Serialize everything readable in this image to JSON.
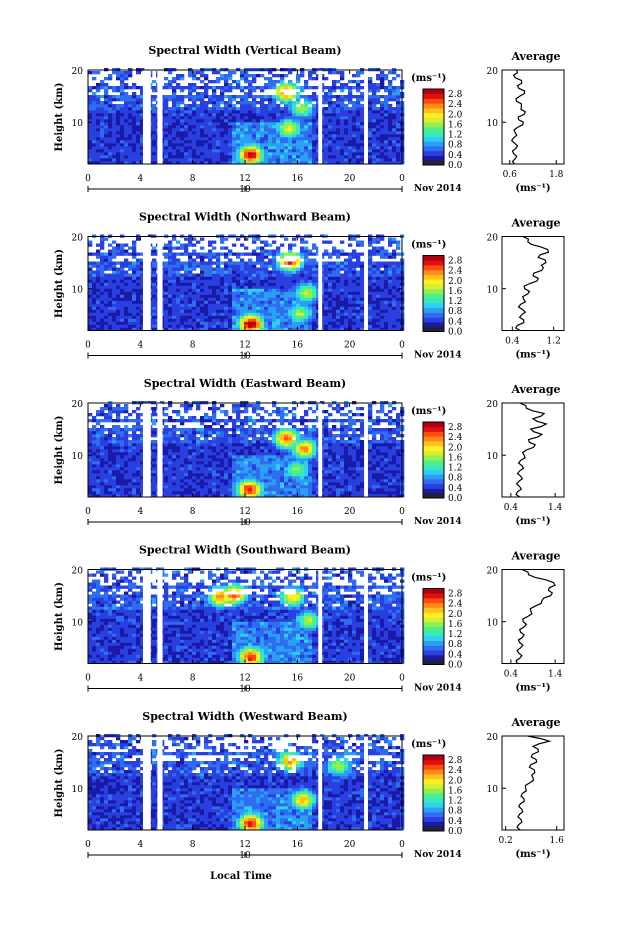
{
  "figure": {
    "xlabel_bottom": "Local Time",
    "date_label": "Nov 2014",
    "day_marker": "10",
    "ylabel": "Height (km)",
    "unit_label": "(ms⁻¹)",
    "avg_title": "Average",
    "colormap": [
      "#000040",
      "#1a1aa8",
      "#2a3fe0",
      "#2f6cf0",
      "#2aa0f5",
      "#30d0f0",
      "#38e8c0",
      "#4cf08a",
      "#90f050",
      "#d8ee30",
      "#fff020",
      "#ffc020",
      "#ff8a18",
      "#ff4a10",
      "#e01010",
      "#b00010"
    ],
    "dark_bottom_color": "#202040"
  },
  "chart_data": [
    {
      "type": "heatmap",
      "title": "Spectral Width (Vertical Beam)",
      "x_ticks": [
        "0",
        "4",
        "8",
        "12",
        "16",
        "20",
        "0"
      ],
      "y_ticks": [
        "20",
        "10"
      ],
      "xlim": [
        0,
        24
      ],
      "ylim": [
        2,
        20
      ],
      "colorbar_ticks": [
        "2.8",
        "2.4",
        "2.0",
        "1.6",
        "1.2",
        "0.8",
        "0.4",
        "0.0"
      ],
      "colorbar_range": [
        0.0,
        3.0
      ],
      "data_gaps_hours": [
        [
          4.2,
          4.8
        ],
        [
          5.3,
          5.7
        ],
        [
          17.6,
          17.9
        ],
        [
          21.1,
          21.4
        ]
      ],
      "hotspots": [
        {
          "t": 12.3,
          "h": 3.5,
          "v": 2.8
        },
        {
          "t": 15.2,
          "h": 8.5,
          "v": 1.8
        },
        {
          "t": 16.2,
          "h": 12.5,
          "v": 1.6
        },
        {
          "t": 15.0,
          "h": 15.5,
          "v": 2.4
        }
      ],
      "average_profile": {
        "xlabel": "(ms⁻¹)",
        "x_ticks": [
          "0.6",
          "1.8"
        ],
        "xlim": [
          0.4,
          2.0
        ],
        "height_km": [
          2,
          3,
          4,
          5,
          6,
          7,
          8,
          9,
          10,
          11,
          12,
          13,
          14,
          15,
          16,
          17,
          18,
          19,
          20
        ],
        "value": [
          0.72,
          0.74,
          0.7,
          0.76,
          0.72,
          0.7,
          0.74,
          0.8,
          0.95,
          0.82,
          1.0,
          0.9,
          0.78,
          0.86,
          0.98,
          0.8,
          0.9,
          0.7,
          0.78
        ]
      }
    },
    {
      "type": "heatmap",
      "title": "Spectral Width (Northward Beam)",
      "x_ticks": [
        "0",
        "4",
        "8",
        "12",
        "16",
        "20",
        "0"
      ],
      "y_ticks": [
        "20",
        "10"
      ],
      "xlim": [
        0,
        24
      ],
      "ylim": [
        2,
        20
      ],
      "colorbar_ticks": [
        "2.8",
        "2.4",
        "2.0",
        "1.6",
        "1.2",
        "0.8",
        "0.4",
        "0.0"
      ],
      "colorbar_range": [
        0.0,
        3.0
      ],
      "data_gaps_hours": [
        [
          4.2,
          4.8
        ],
        [
          5.3,
          5.7
        ],
        [
          17.6,
          17.9
        ],
        [
          21.1,
          21.4
        ]
      ],
      "hotspots": [
        {
          "t": 12.3,
          "h": 3.0,
          "v": 2.9
        },
        {
          "t": 15.3,
          "h": 15.0,
          "v": 2.6
        },
        {
          "t": 16.6,
          "h": 9.0,
          "v": 1.7
        },
        {
          "t": 16.0,
          "h": 5.0,
          "v": 1.6
        }
      ],
      "average_profile": {
        "xlabel": "(ms⁻¹)",
        "x_ticks": [
          "0.4",
          "1.2"
        ],
        "xlim": [
          0.2,
          1.4
        ],
        "height_km": [
          2,
          3,
          4,
          5,
          6,
          7,
          8,
          9,
          10,
          11,
          12,
          13,
          14,
          15,
          16,
          17,
          18,
          19,
          20
        ],
        "value": [
          0.55,
          0.5,
          0.62,
          0.58,
          0.6,
          0.56,
          0.62,
          0.7,
          0.64,
          0.74,
          0.9,
          0.82,
          1.0,
          1.05,
          0.9,
          1.1,
          0.95,
          0.7,
          0.6
        ]
      }
    },
    {
      "type": "heatmap",
      "title": "Spectral Width (Eastward Beam)",
      "x_ticks": [
        "0",
        "4",
        "8",
        "12",
        "16",
        "20",
        "0"
      ],
      "y_ticks": [
        "20",
        "10"
      ],
      "xlim": [
        0,
        24
      ],
      "ylim": [
        2,
        20
      ],
      "colorbar_ticks": [
        "2.8",
        "2.4",
        "2.0",
        "1.6",
        "1.2",
        "0.8",
        "0.4",
        "0.0"
      ],
      "colorbar_range": [
        0.0,
        3.0
      ],
      "data_gaps_hours": [
        [
          4.2,
          4.8
        ],
        [
          5.3,
          5.7
        ],
        [
          17.6,
          17.9
        ],
        [
          21.1,
          21.4
        ]
      ],
      "hotspots": [
        {
          "t": 12.2,
          "h": 3.2,
          "v": 2.7
        },
        {
          "t": 15.0,
          "h": 13.0,
          "v": 2.4
        },
        {
          "t": 16.4,
          "h": 11.0,
          "v": 2.2
        },
        {
          "t": 15.8,
          "h": 7.0,
          "v": 1.5
        }
      ],
      "average_profile": {
        "xlabel": "(ms⁻¹)",
        "x_ticks": [
          "0.4",
          "1.4"
        ],
        "xlim": [
          0.2,
          1.6
        ],
        "height_km": [
          2,
          3,
          4,
          5,
          6,
          7,
          8,
          9,
          10,
          11,
          12,
          13,
          14,
          15,
          16,
          17,
          18,
          19,
          20
        ],
        "value": [
          0.6,
          0.55,
          0.6,
          0.58,
          0.62,
          0.6,
          0.65,
          0.62,
          0.7,
          0.75,
          0.95,
          0.8,
          1.1,
          0.85,
          1.2,
          0.9,
          1.15,
          0.75,
          0.6
        ]
      }
    },
    {
      "type": "heatmap",
      "title": "Spectral Width (Southward Beam)",
      "x_ticks": [
        "0",
        "4",
        "8",
        "12",
        "16",
        "20",
        "0"
      ],
      "y_ticks": [
        "20",
        "10"
      ],
      "xlim": [
        0,
        24
      ],
      "ylim": [
        2,
        20
      ],
      "colorbar_ticks": [
        "2.8",
        "2.4",
        "2.0",
        "1.6",
        "1.2",
        "0.8",
        "0.4",
        "0.0"
      ],
      "colorbar_range": [
        0.0,
        3.0
      ],
      "data_gaps_hours": [
        [
          4.2,
          4.8
        ],
        [
          5.3,
          5.7
        ],
        [
          17.6,
          17.9
        ],
        [
          21.1,
          21.4
        ]
      ],
      "hotspots": [
        {
          "t": 12.3,
          "h": 3.0,
          "v": 2.6
        },
        {
          "t": 10.0,
          "h": 14.5,
          "v": 2.3
        },
        {
          "t": 11.0,
          "h": 15.0,
          "v": 2.5
        },
        {
          "t": 15.5,
          "h": 14.5,
          "v": 2.0
        },
        {
          "t": 16.7,
          "h": 10.0,
          "v": 1.6
        }
      ],
      "average_profile": {
        "xlabel": "(ms⁻¹)",
        "x_ticks": [
          "0.4",
          "1.4"
        ],
        "xlim": [
          0.2,
          1.6
        ],
        "height_km": [
          2,
          3,
          4,
          5,
          6,
          7,
          8,
          9,
          10,
          11,
          12,
          13,
          14,
          15,
          16,
          17,
          18,
          19,
          20
        ],
        "value": [
          0.55,
          0.6,
          0.58,
          0.62,
          0.6,
          0.66,
          0.62,
          0.7,
          0.68,
          0.78,
          0.85,
          0.95,
          1.1,
          1.3,
          1.25,
          1.4,
          1.2,
          0.8,
          0.65
        ]
      }
    },
    {
      "type": "heatmap",
      "title": "Spectral Width (Westward Beam)",
      "x_ticks": [
        "0",
        "4",
        "8",
        "12",
        "16",
        "20",
        "0"
      ],
      "y_ticks": [
        "20",
        "10"
      ],
      "xlim": [
        0,
        24
      ],
      "ylim": [
        2,
        20
      ],
      "colorbar_ticks": [
        "2.8",
        "2.4",
        "2.0",
        "1.6",
        "1.2",
        "0.8",
        "0.4",
        "0.0"
      ],
      "colorbar_range": [
        0.0,
        3.0
      ],
      "data_gaps_hours": [
        [
          4.2,
          4.8
        ],
        [
          5.3,
          5.7
        ],
        [
          17.6,
          17.9
        ],
        [
          21.1,
          21.4
        ]
      ],
      "hotspots": [
        {
          "t": 12.3,
          "h": 3.0,
          "v": 2.7
        },
        {
          "t": 16.3,
          "h": 7.5,
          "v": 2.1
        },
        {
          "t": 15.3,
          "h": 15.0,
          "v": 2.2
        },
        {
          "t": 19.0,
          "h": 14.0,
          "v": 1.6
        }
      ],
      "average_profile": {
        "xlabel": "(ms⁻¹)",
        "x_ticks": [
          "0.2",
          "1.6"
        ],
        "xlim": [
          0.1,
          1.8
        ],
        "height_km": [
          2,
          3,
          4,
          5,
          6,
          7,
          8,
          9,
          10,
          11,
          12,
          13,
          14,
          15,
          16,
          17,
          18,
          19,
          20
        ],
        "value": [
          0.6,
          0.55,
          0.62,
          0.58,
          0.64,
          0.6,
          0.7,
          0.66,
          0.75,
          0.85,
          0.95,
          1.0,
          0.85,
          1.05,
          0.9,
          1.1,
          0.95,
          1.4,
          0.8
        ]
      }
    }
  ]
}
